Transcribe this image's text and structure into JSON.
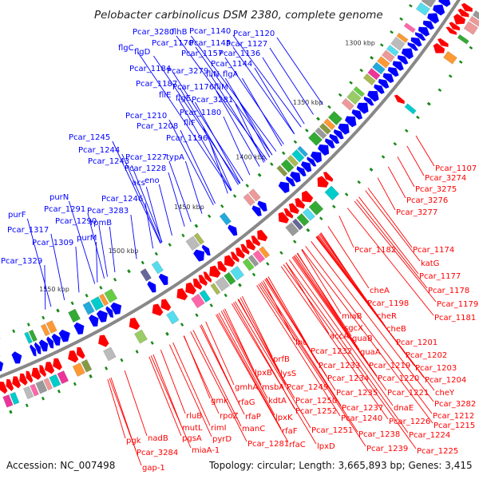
{
  "title": "Pelobacter carbinolicus DSM 2380, complete genome",
  "accession": "Accession: NC_007498",
  "summary": "Topology: circular; Length: 3,665,893 bp; Genes: 3,415",
  "kbp_ticks": [
    "1300 kbp",
    "1350 kbp",
    "1400 kbp",
    "1450 kbp",
    "1500 kbp",
    "1550 kbp"
  ],
  "colors": {
    "forward": "#0000ff",
    "reverse": "#ff0000",
    "backbone": "#888888",
    "tick_dot": "#1a8a1a"
  },
  "forward_labels": [
    "Pcar_3280",
    "flhB",
    "Pcar_1140",
    "Pcar_1120",
    "Pcar_1170",
    "Pcar_1145",
    "Pcar_1127",
    "flgC",
    "flgD",
    "Pcar_1157",
    "Pcar_1136",
    "Pcar_1144",
    "Pcar_1184",
    "Pcar_3279",
    "fliN",
    "flgA",
    "Pcar_1187",
    "Pcar_1176",
    "fliM",
    "fliE",
    "flgE",
    "Pcar_3281",
    "Pcar_1210",
    "Pcar_1180",
    "Pcar_1208",
    "fliF",
    "Pcar_1196",
    "Pcar_1245",
    "Pcar_1244",
    "Pcar_1243",
    "Pcar_1227",
    "typA",
    "Pcar_1228",
    "acs",
    "eno",
    "Pcar_1246",
    "Pcar_3283",
    "rpmB",
    "purN",
    "Pcar_1291",
    "Pcar_1290",
    "purF",
    "Pcar_1317",
    "Pcar_1309",
    "purM",
    "Pcar_1329"
  ],
  "reverse_labels": [
    "Pcar_1107",
    "Pcar_3274",
    "Pcar_3275",
    "Pcar_3276",
    "Pcar_3277",
    "Pcar_1182",
    "Pcar_1174",
    "katG",
    "Pcar_1177",
    "Pcar_1178",
    "Pcar_1179",
    "Pcar_1181",
    "cheA",
    "Pcar_1198",
    "miaB",
    "cheR",
    "sgcX",
    "cheB",
    "accA",
    "guaB",
    "Pcar_1201",
    "guaA",
    "Pcar_1202",
    "Int",
    "Pcar_1232",
    "Pcar_1233",
    "Pcar_1219",
    "Pcar_1203",
    "Pcar_1234",
    "Pcar_1220",
    "Pcar_1204",
    "prfB",
    "lpxB",
    "lysS",
    "Pcar_1235",
    "Pcar_1221",
    "cheY",
    "gmhA",
    "msbA",
    "Pcar_1249",
    "dnaE",
    "Pcar_3282",
    "Pcar_1250",
    "Pcar_1237",
    "Pcar_1212",
    "gmk",
    "rfaG",
    "kdtA",
    "Pcar_1252",
    "Pcar_1240",
    "Pcar_1226",
    "Pcar_1215",
    "rluB",
    "rpoZ",
    "rfaP",
    "lpxK",
    "Pcar_1238",
    "Pcar_1224",
    "mutL",
    "rimI",
    "manC",
    "rfaF",
    "Pcar_1251",
    "Pcar_1239",
    "Pcar_1225",
    "pgsA",
    "pyrD",
    "lpxD",
    "Pcar_1281",
    "rfaC",
    "pgk",
    "nadB",
    "Pcar_3284",
    "miaA-1",
    "gap-1"
  ]
}
